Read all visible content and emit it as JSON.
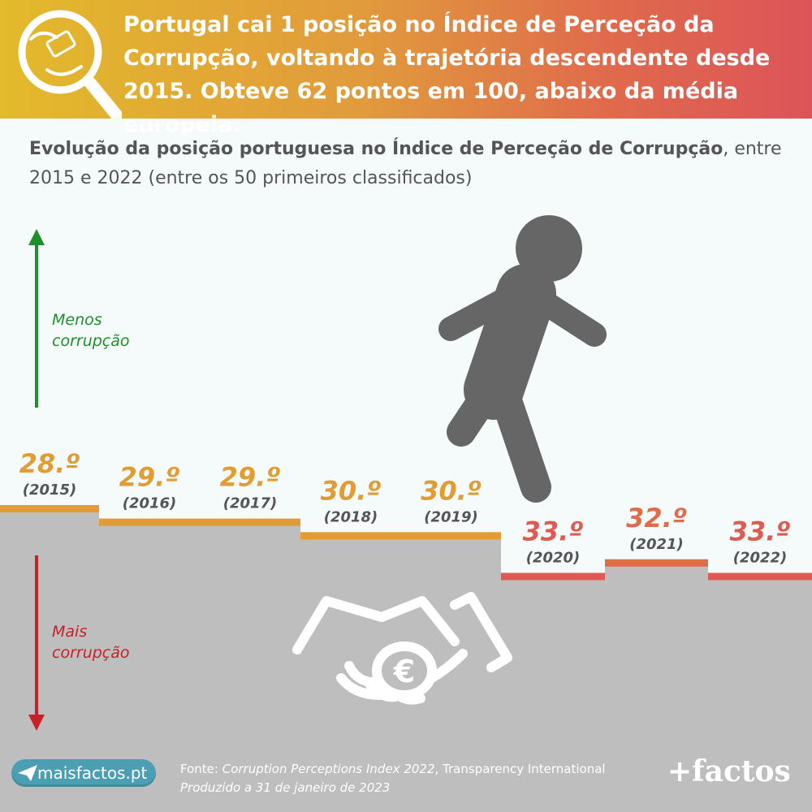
{
  "header": {
    "headline": "Portugal cai 1 posição no Índice de Perceção da Corrupção, voltando à trajetória descendente desde 2015. Obteve 62 pontos em 100, abaixo da média europeia.",
    "icon": "corruption-magnifier-icon"
  },
  "subtitle": {
    "bold": "Evolução da posição portuguesa no Índice de Perceção de Corrupção",
    "rest": ", entre 2015 e 2022 (entre os 50 primeiros classificados)"
  },
  "axis_labels": {
    "top": "Menos corrupção",
    "bottom": "Mais corrupção"
  },
  "chart_data": {
    "type": "bar",
    "categories": [
      "2015",
      "2016",
      "2017",
      "2018",
      "2019",
      "2020",
      "2021",
      "2022"
    ],
    "category_labels": [
      "(2015)",
      "(2016)",
      "(2017)",
      "(2018)",
      "(2019)",
      "(2020)",
      "(2021)",
      "(2022)"
    ],
    "values": [
      28,
      29,
      29,
      30,
      30,
      33,
      32,
      33
    ],
    "value_labels": [
      "28.º",
      "29.º",
      "29.º",
      "30.º",
      "30.º",
      "33.º",
      "32.º",
      "33.º"
    ],
    "ylim": [
      50,
      1
    ],
    "colors": {
      "28": "#e39c34",
      "29": "#e39c34",
      "30": "#e39c34",
      "32": "#df6d4a",
      "33": "#df5a52"
    },
    "ground_color": "#bebebe",
    "label_color": "#555555"
  },
  "footer": {
    "site": "maisfactos.pt",
    "source_prefix": "Fonte: ",
    "source_title": "Corruption Perceptions Index 2022",
    "source_suffix": ", Transparency International",
    "produced": "Produzido a 31 de janeiro de 2023",
    "brand": "+factos"
  }
}
